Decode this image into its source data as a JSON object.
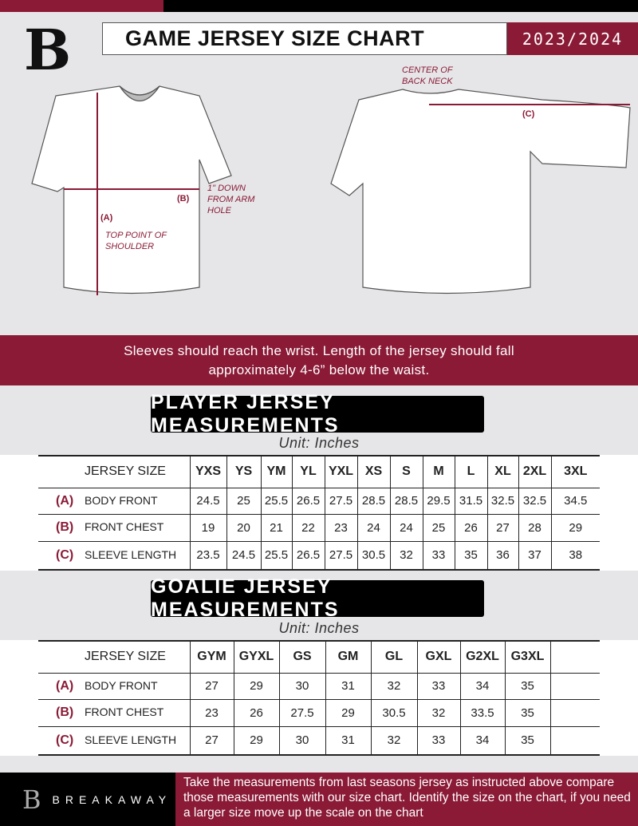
{
  "header": {
    "title": "GAME JERSEY SIZE CHART",
    "season": "2023/2024",
    "logo": "B"
  },
  "diagram": {
    "center_back_neck": "CENTER OF BACK NECK",
    "label_a": "(A)",
    "label_b": "(B)",
    "label_c": "(C)",
    "arm_hole_note": "1\" DOWN FROM ARM HOLE",
    "shoulder_note": "TOP POINT OF SHOULDER"
  },
  "instruction": "Sleeves should reach the wrist. Length of the jersey should fall approximately 4-6” below the waist.",
  "player": {
    "title": "PLAYER JERSEY MEASUREMENTS",
    "unit": "Unit: Inches",
    "header": "JERSEY SIZE",
    "sizes": [
      "YXS",
      "YS",
      "YM",
      "YL",
      "YXL",
      "XS",
      "S",
      "M",
      "L",
      "XL",
      "2XL",
      "3XL"
    ],
    "rows": [
      {
        "letter": "(A)",
        "label": "BODY FRONT",
        "values": [
          "24.5",
          "25",
          "25.5",
          "26.5",
          "27.5",
          "28.5",
          "28.5",
          "29.5",
          "31.5",
          "32.5",
          "32.5",
          "34.5"
        ]
      },
      {
        "letter": "(B)",
        "label": "FRONT CHEST",
        "values": [
          "19",
          "20",
          "21",
          "22",
          "23",
          "24",
          "24",
          "25",
          "26",
          "27",
          "28",
          "29"
        ]
      },
      {
        "letter": "(C)",
        "label": "SLEEVE LENGTH",
        "values": [
          "23.5",
          "24.5",
          "25.5",
          "26.5",
          "27.5",
          "30.5",
          "32",
          "33",
          "35",
          "36",
          "37",
          "38"
        ]
      }
    ]
  },
  "goalie": {
    "title": "GOALIE JERSEY MEASUREMENTS",
    "unit": "Unit: Inches",
    "header": "JERSEY SIZE",
    "sizes": [
      "GYM",
      "GYXL",
      "GS",
      "GM",
      "GL",
      "GXL",
      "G2XL",
      "G3XL",
      ""
    ],
    "rows": [
      {
        "letter": "(A)",
        "label": "BODY FRONT",
        "values": [
          "27",
          "29",
          "30",
          "31",
          "32",
          "33",
          "34",
          "35",
          ""
        ]
      },
      {
        "letter": "(B)",
        "label": "FRONT CHEST",
        "values": [
          "23",
          "26",
          "27.5",
          "29",
          "30.5",
          "32",
          "33.5",
          "35",
          ""
        ]
      },
      {
        "letter": "(C)",
        "label": "SLEEVE LENGTH",
        "values": [
          "27",
          "29",
          "30",
          "31",
          "32",
          "33",
          "34",
          "35",
          ""
        ]
      }
    ]
  },
  "footer": {
    "brand": "BREAKAWAY",
    "text": "Take the measurements from last seasons jersey as instructed above compare those measurements  with our size chart. Identify the size on the chart, if you need a larger size move up the scale on the chart"
  },
  "colors": {
    "accent": "#8a1a36",
    "dark": "#000000",
    "background": "#e6e6e8"
  }
}
